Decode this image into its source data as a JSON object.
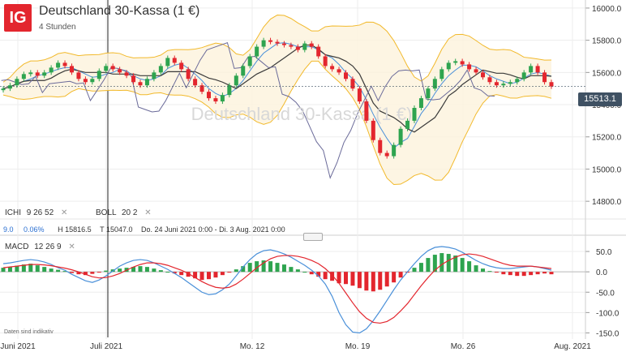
{
  "header": {
    "logo_text": "IG",
    "title": "Deutschland 30-Kassa (1 €)",
    "subtitle": "4 Stunden",
    "watermark": "Deutschland 30-Kassa (1 €)"
  },
  "indicators": {
    "ichimoku_label": "ICHI",
    "ichimoku_params": "9  26  52",
    "bollinger_label": "BOLL",
    "bollinger_params": "20  2",
    "macd_label": "MACD",
    "macd_params": "12  26  9",
    "close_symbol": "✕"
  },
  "info_row": {
    "value": "9.0",
    "change": "0.06%",
    "high": "H 15816.5",
    "low": "T 15047.0",
    "range": "Do. 24 Juni 2021 0:00 - Di. 3 Aug. 2021 0:00"
  },
  "price_badge": "15513.1",
  "disclaimer": "Daten sind indikativ",
  "colors": {
    "up": "#2ea44f",
    "down": "#e3262e",
    "bollinger": "#f2b92b",
    "bollinger_fill": "#fdf3dc",
    "ichimoku_line": "#6a6a99",
    "kijun": "#3a3a3a",
    "tenkan": "#4a90d9",
    "cloud_green": "#e9f6ee",
    "cloud_red": "#fbeaea",
    "macd_line": "#4a90d9",
    "signal_line": "#e3262e",
    "badge": "#3f5163"
  },
  "chart_data": [
    {
      "type": "line",
      "subtype": "candlestick",
      "title": "Deutschland 30-Kassa (1 €)",
      "interval": "4 Stunden",
      "x_labels": [
        "Juni 2021",
        "Juli 2021",
        "Mo. 12",
        "Mo. 19",
        "Mo. 26",
        "Aug. 2021"
      ],
      "y_ticks": [
        14800,
        15000,
        15200,
        15400,
        15600,
        15800,
        16000
      ],
      "ylim": [
        14700,
        16050
      ],
      "last_price": 15513.1,
      "high": 15816.5,
      "low": 15047.0,
      "overlays": [
        "Ichimoku 9 26 52",
        "Bollinger 20 2"
      ],
      "close_series": [
        15500,
        15520,
        15560,
        15590,
        15600,
        15580,
        15600,
        15630,
        15660,
        15640,
        15600,
        15560,
        15540,
        15560,
        15610,
        15640,
        15620,
        15600,
        15580,
        15540,
        15520,
        15560,
        15600,
        15640,
        15690,
        15660,
        15620,
        15560,
        15520,
        15480,
        15440,
        15420,
        15460,
        15520,
        15580,
        15640,
        15700,
        15760,
        15800,
        15790,
        15780,
        15770,
        15760,
        15740,
        15780,
        15760,
        15700,
        15640,
        15620,
        15600,
        15560,
        15500,
        15420,
        15300,
        15180,
        15100,
        15080,
        15150,
        15250,
        15300,
        15380,
        15440,
        15500,
        15560,
        15620,
        15660,
        15670,
        15650,
        15620,
        15600,
        15570,
        15540,
        15520,
        15530,
        15540,
        15560,
        15600,
        15640,
        15600,
        15540,
        15513
      ]
    },
    {
      "type": "bar",
      "subtype": "macd",
      "title": "MACD 12 26 9",
      "y_ticks": [
        50,
        0,
        -50,
        -100,
        -150
      ],
      "ylim": [
        -165,
        70
      ],
      "histogram": [
        10,
        12,
        15,
        18,
        20,
        16,
        12,
        8,
        5,
        2,
        -3,
        -6,
        -8,
        -5,
        -2,
        3,
        6,
        8,
        10,
        12,
        14,
        12,
        8,
        4,
        0,
        -4,
        -8,
        -12,
        -16,
        -20,
        -18,
        -14,
        -8,
        -2,
        6,
        14,
        22,
        26,
        28,
        26,
        22,
        18,
        12,
        6,
        0,
        -6,
        -12,
        -18,
        -22,
        -28,
        -30,
        -34,
        -40,
        -46,
        -48,
        -44,
        -36,
        -26,
        -14,
        -2,
        10,
        22,
        34,
        42,
        46,
        44,
        40,
        34,
        26,
        16,
        8,
        2,
        -2,
        -6,
        -8,
        -10,
        -10,
        -8,
        -6,
        -4,
        -6
      ],
      "macd_line": [
        20,
        22,
        25,
        28,
        30,
        28,
        24,
        18,
        10,
        4,
        -6,
        -14,
        -22,
        -26,
        -20,
        -10,
        2,
        14,
        22,
        28,
        30,
        28,
        22,
        14,
        6,
        -4,
        -14,
        -26,
        -38,
        -50,
        -56,
        -54,
        -44,
        -30,
        -10,
        12,
        30,
        44,
        52,
        54,
        50,
        44,
        36,
        26,
        16,
        4,
        -10,
        -30,
        -60,
        -100,
        -130,
        -148,
        -150,
        -140,
        -120,
        -96,
        -70,
        -44,
        -20,
        0,
        20,
        38,
        52,
        60,
        62,
        60,
        56,
        48,
        38,
        28,
        20,
        14,
        10,
        8,
        8,
        10,
        12,
        14,
        12,
        8,
        4
      ],
      "signal_line": [
        10,
        12,
        14,
        16,
        18,
        18,
        17,
        15,
        12,
        9,
        5,
        0,
        -6,
        -12,
        -15,
        -14,
        -10,
        -4,
        4,
        12,
        18,
        22,
        22,
        20,
        16,
        10,
        4,
        -4,
        -14,
        -24,
        -32,
        -38,
        -40,
        -38,
        -30,
        -18,
        -4,
        10,
        22,
        32,
        38,
        40,
        40,
        38,
        34,
        28,
        20,
        8,
        -8,
        -28,
        -52,
        -76,
        -98,
        -114,
        -124,
        -126,
        -122,
        -112,
        -96,
        -78,
        -56,
        -34,
        -14,
        4,
        18,
        28,
        36,
        42,
        44,
        42,
        38,
        32,
        26,
        20,
        16,
        14,
        14,
        14,
        12,
        10,
        8
      ]
    }
  ]
}
